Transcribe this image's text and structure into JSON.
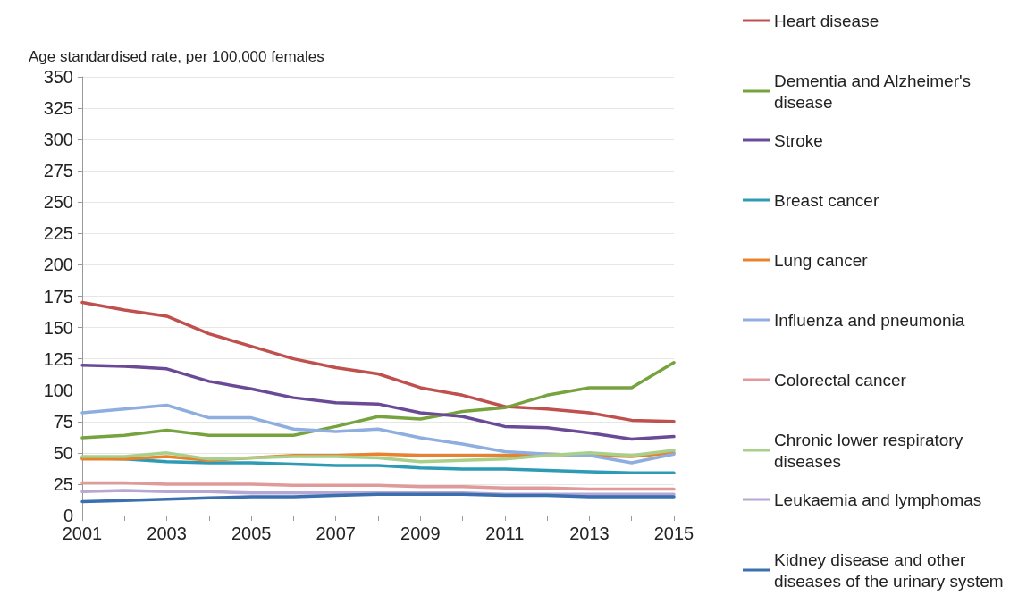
{
  "chart_data": {
    "type": "line",
    "ylabel": "Age standardised rate, per 100,000 females",
    "x": [
      2001,
      2002,
      2003,
      2004,
      2005,
      2006,
      2007,
      2008,
      2009,
      2010,
      2011,
      2012,
      2013,
      2014,
      2015
    ],
    "xlim": [
      2001,
      2015
    ],
    "xticks": [
      2001,
      {
        "value": 2002,
        "label": null
      },
      2003,
      {
        "value": 2004,
        "label": null
      },
      2005,
      {
        "value": 2006,
        "label": null
      },
      2007,
      {
        "value": 2008,
        "label": null
      },
      2009,
      {
        "value": 2010,
        "label": null
      },
      2011,
      {
        "value": 2012,
        "label": null
      },
      2013,
      {
        "value": 2014,
        "label": null
      },
      2015
    ],
    "ylim": [
      0,
      350
    ],
    "yticks": [
      0,
      25,
      50,
      75,
      100,
      125,
      150,
      175,
      200,
      225,
      250,
      275,
      300,
      325,
      350
    ],
    "grid": "y",
    "legend": "right",
    "marker": "none",
    "line_style": "solid",
    "series": [
      {
        "name": "Heart disease",
        "color": "#c0504d",
        "values": [
          170,
          164,
          159,
          145,
          135,
          125,
          118,
          113,
          102,
          96,
          87,
          85,
          82,
          76,
          75
        ]
      },
      {
        "name": "Dementia and Alzheimer's disease",
        "color": "#77a33f",
        "values": [
          62,
          64,
          68,
          64,
          64,
          64,
          71,
          79,
          77,
          83,
          86,
          96,
          102,
          102,
          122
        ]
      },
      {
        "name": "Stroke",
        "color": "#6a4a96",
        "values": [
          120,
          119,
          117,
          107,
          101,
          94,
          90,
          89,
          82,
          79,
          71,
          70,
          66,
          61,
          63
        ]
      },
      {
        "name": "Breast cancer",
        "color": "#2e9bb5",
        "values": [
          46,
          45,
          43,
          42,
          42,
          41,
          40,
          40,
          38,
          37,
          37,
          36,
          35,
          34,
          34
        ]
      },
      {
        "name": "Lung cancer",
        "color": "#e8822e",
        "values": [
          45,
          45,
          47,
          44,
          46,
          48,
          48,
          49,
          48,
          48,
          48,
          49,
          48,
          47,
          50
        ]
      },
      {
        "name": "Influenza and pneumonia",
        "color": "#8eaee0",
        "values": [
          82,
          85,
          88,
          78,
          78,
          69,
          67,
          69,
          62,
          57,
          51,
          49,
          48,
          42,
          49
        ]
      },
      {
        "name": "Colorectal cancer",
        "color": "#e09a9a",
        "values": [
          26,
          26,
          25,
          25,
          25,
          24,
          24,
          24,
          23,
          23,
          22,
          22,
          21,
          21,
          21
        ]
      },
      {
        "name": "Chronic lower respiratory diseases",
        "color": "#a8d08a",
        "values": [
          47,
          47,
          50,
          45,
          46,
          47,
          47,
          46,
          43,
          44,
          45,
          48,
          50,
          48,
          52
        ]
      },
      {
        "name": "Leukaemia and lymphomas",
        "color": "#b7a7d3",
        "values": [
          19,
          20,
          19,
          19,
          18,
          18,
          18,
          18,
          18,
          18,
          17,
          17,
          17,
          17,
          17
        ]
      },
      {
        "name": "Kidney disease and other diseases of the urinary system",
        "color": "#3a6fb0",
        "values": [
          11,
          12,
          13,
          14,
          15,
          15,
          16,
          17,
          17,
          17,
          16,
          16,
          15,
          15,
          15
        ]
      }
    ]
  }
}
